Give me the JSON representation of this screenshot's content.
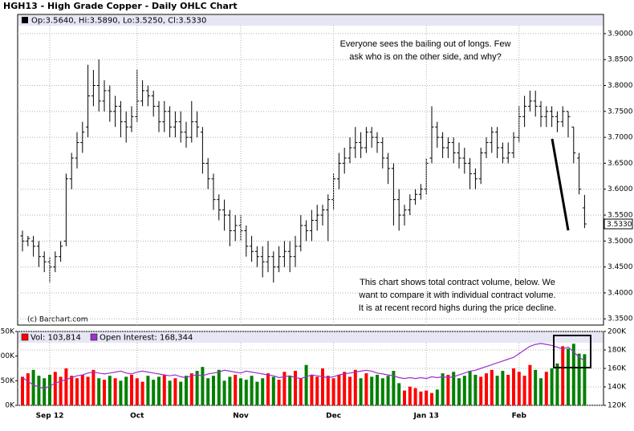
{
  "chart_data": [
    {
      "type": "ohlc",
      "title": "HGH13 - High Grade Copper - Daily OHLC Chart",
      "legend_text": "Op:3.5640, Hi:3.5890, Lo:3.5250, Cl:3.5330",
      "price_tag": "3.5330",
      "credit": "(c) Barchart.com",
      "annotations": [
        [
          "Everyone sees the bailing out of longs.  Few",
          "ask who is on the other side, and why?"
        ],
        [
          "This chart shows total contract volume, below.  We",
          "want to compare it with individual contract volume.",
          "It is at recent record highs during the price decline."
        ]
      ],
      "color": "#000000",
      "grid": true,
      "ylim": [
        3.338,
        3.937
      ],
      "yticks": [
        {
          "value": 3.35,
          "label": "3.3500"
        },
        {
          "value": 3.4,
          "label": "3.4000"
        },
        {
          "value": 3.45,
          "label": "3.4500"
        },
        {
          "value": 3.5,
          "label": "3.5000"
        },
        {
          "value": 3.55,
          "label": "3.5500"
        },
        {
          "value": 3.6,
          "label": "3.6000"
        },
        {
          "value": 3.65,
          "label": "3.6500"
        },
        {
          "value": 3.7,
          "label": "3.7000"
        },
        {
          "value": 3.75,
          "label": "3.7500"
        },
        {
          "value": 3.8,
          "label": "3.8000"
        },
        {
          "value": 3.85,
          "label": "3.8500"
        },
        {
          "value": 3.9,
          "label": "3.9000"
        }
      ],
      "open": [
        3.51,
        3.5,
        3.5,
        3.49,
        3.47,
        3.46,
        3.45,
        3.47,
        3.5,
        3.62,
        3.66,
        3.69,
        3.72,
        3.78,
        3.8,
        3.77,
        3.79,
        3.75,
        3.76,
        3.73,
        3.72,
        3.74,
        3.77,
        3.79,
        3.78,
        3.76,
        3.73,
        3.75,
        3.72,
        3.73,
        3.71,
        3.7,
        3.73,
        3.71,
        3.65,
        3.62,
        3.58,
        3.56,
        3.55,
        3.52,
        3.53,
        3.52,
        3.49,
        3.48,
        3.47,
        3.46,
        3.47,
        3.45,
        3.47,
        3.48,
        3.47,
        3.49,
        3.53,
        3.52,
        3.54,
        3.55,
        3.56,
        3.58,
        3.62,
        3.65,
        3.66,
        3.68,
        3.69,
        3.68,
        3.71,
        3.7,
        3.69,
        3.66,
        3.64,
        3.58,
        3.55,
        3.56,
        3.58,
        3.59,
        3.6,
        3.66,
        3.72,
        3.7,
        3.68,
        3.69,
        3.67,
        3.66,
        3.65,
        3.63,
        3.62,
        3.67,
        3.69,
        3.71,
        3.68,
        3.66,
        3.67,
        3.7,
        3.74,
        3.76,
        3.77,
        3.76,
        3.74,
        3.75,
        3.74,
        3.73,
        3.75,
        3.72,
        3.66,
        3.564
      ],
      "high": [
        3.52,
        3.51,
        3.51,
        3.5,
        3.48,
        3.47,
        3.48,
        3.5,
        3.63,
        3.67,
        3.71,
        3.73,
        3.84,
        3.83,
        3.85,
        3.81,
        3.8,
        3.78,
        3.77,
        3.75,
        3.76,
        3.83,
        3.81,
        3.8,
        3.79,
        3.77,
        3.77,
        3.76,
        3.75,
        3.75,
        3.73,
        3.77,
        3.75,
        3.72,
        3.66,
        3.63,
        3.59,
        3.58,
        3.56,
        3.55,
        3.55,
        3.53,
        3.51,
        3.49,
        3.49,
        3.5,
        3.48,
        3.49,
        3.5,
        3.5,
        3.51,
        3.55,
        3.54,
        3.56,
        3.57,
        3.57,
        3.59,
        3.63,
        3.67,
        3.68,
        3.7,
        3.72,
        3.71,
        3.72,
        3.72,
        3.71,
        3.7,
        3.67,
        3.65,
        3.6,
        3.57,
        3.59,
        3.6,
        3.61,
        3.66,
        3.76,
        3.73,
        3.71,
        3.7,
        3.7,
        3.69,
        3.68,
        3.66,
        3.64,
        3.68,
        3.7,
        3.72,
        3.72,
        3.69,
        3.69,
        3.71,
        3.76,
        3.78,
        3.79,
        3.79,
        3.77,
        3.76,
        3.76,
        3.75,
        3.76,
        3.75,
        3.72,
        3.67,
        3.589
      ],
      "low": [
        3.48,
        3.49,
        3.47,
        3.45,
        3.44,
        3.42,
        3.44,
        3.46,
        3.49,
        3.6,
        3.64,
        3.67,
        3.7,
        3.76,
        3.75,
        3.75,
        3.73,
        3.72,
        3.7,
        3.69,
        3.71,
        3.73,
        3.76,
        3.76,
        3.74,
        3.71,
        3.71,
        3.7,
        3.7,
        3.69,
        3.68,
        3.69,
        3.7,
        3.63,
        3.6,
        3.56,
        3.54,
        3.52,
        3.49,
        3.5,
        3.5,
        3.47,
        3.46,
        3.45,
        3.43,
        3.44,
        3.42,
        3.44,
        3.45,
        3.44,
        3.45,
        3.48,
        3.5,
        3.5,
        3.52,
        3.53,
        3.5,
        3.56,
        3.6,
        3.63,
        3.65,
        3.66,
        3.66,
        3.67,
        3.68,
        3.67,
        3.64,
        3.61,
        3.53,
        3.52,
        3.53,
        3.55,
        3.57,
        3.58,
        3.59,
        3.65,
        3.68,
        3.66,
        3.66,
        3.65,
        3.64,
        3.63,
        3.6,
        3.6,
        3.61,
        3.66,
        3.67,
        3.66,
        3.65,
        3.65,
        3.66,
        3.69,
        3.72,
        3.75,
        3.74,
        3.72,
        3.72,
        3.72,
        3.71,
        3.72,
        3.7,
        3.65,
        3.59,
        3.525
      ],
      "close": [
        3.5,
        3.505,
        3.49,
        3.47,
        3.46,
        3.45,
        3.47,
        3.49,
        3.62,
        3.66,
        3.69,
        3.71,
        3.78,
        3.8,
        3.77,
        3.79,
        3.75,
        3.76,
        3.73,
        3.72,
        3.74,
        3.77,
        3.79,
        3.78,
        3.76,
        3.73,
        3.75,
        3.72,
        3.73,
        3.71,
        3.7,
        3.73,
        3.72,
        3.65,
        3.62,
        3.58,
        3.56,
        3.55,
        3.52,
        3.53,
        3.52,
        3.49,
        3.48,
        3.47,
        3.46,
        3.47,
        3.45,
        3.47,
        3.48,
        3.47,
        3.49,
        3.53,
        3.52,
        3.54,
        3.55,
        3.56,
        3.58,
        3.62,
        3.65,
        3.66,
        3.68,
        3.69,
        3.68,
        3.71,
        3.7,
        3.69,
        3.66,
        3.64,
        3.58,
        3.55,
        3.56,
        3.58,
        3.59,
        3.6,
        3.65,
        3.72,
        3.7,
        3.68,
        3.69,
        3.67,
        3.66,
        3.65,
        3.63,
        3.62,
        3.67,
        3.69,
        3.71,
        3.68,
        3.66,
        3.67,
        3.7,
        3.74,
        3.76,
        3.77,
        3.76,
        3.74,
        3.75,
        3.74,
        3.73,
        3.75,
        3.74,
        3.67,
        3.6,
        3.533
      ]
    },
    {
      "type": "volume",
      "up_color": "#ff0000",
      "down_color": "#008000",
      "grid": true,
      "categories": [
        null,
        null,
        null,
        null,
        null,
        "Sep 12",
        null,
        null,
        null,
        null,
        null,
        null,
        null,
        null,
        null,
        null,
        null,
        null,
        null,
        null,
        null,
        "Oct",
        null,
        null,
        null,
        null,
        null,
        null,
        null,
        null,
        null,
        null,
        null,
        null,
        null,
        null,
        null,
        null,
        null,
        null,
        "Nov",
        null,
        null,
        null,
        null,
        null,
        null,
        null,
        null,
        null,
        null,
        null,
        null,
        null,
        null,
        null,
        null,
        "Dec",
        null,
        null,
        null,
        null,
        null,
        null,
        null,
        null,
        null,
        null,
        null,
        null,
        null,
        null,
        null,
        null,
        "Jan 13",
        null,
        null,
        null,
        null,
        null,
        null,
        null,
        null,
        null,
        null,
        null,
        null,
        null,
        null,
        null,
        null,
        "Feb",
        null,
        null,
        null,
        null,
        null,
        null,
        null,
        null,
        null,
        null,
        null,
        null
      ],
      "ylim": [
        0,
        150000
      ],
      "yticks": [
        {
          "value": 0,
          "label": "0K"
        },
        {
          "value": 50000,
          "label": "50K"
        },
        {
          "value": 100000,
          "label": "100K"
        },
        {
          "value": 150000,
          "label": "150K"
        }
      ],
      "y2lim": [
        120000,
        200000
      ],
      "y2ticks": [
        {
          "value": 120000,
          "label": "120K"
        },
        {
          "value": 140000,
          "label": "140K"
        },
        {
          "value": 160000,
          "label": "160K"
        },
        {
          "value": 180000,
          "label": "180K"
        },
        {
          "value": 200000,
          "label": "200K"
        }
      ],
      "series": [
        {
          "name": "Vol: 103,814",
          "color": "#ff0000",
          "values": [
            58000,
            65000,
            72000,
            60000,
            55000,
            62000,
            68000,
            58000,
            75000,
            60000,
            55000,
            62000,
            58000,
            72000,
            55000,
            52000,
            60000,
            55000,
            50000,
            58000,
            62000,
            55000,
            48000,
            60000,
            52000,
            58000,
            62000,
            50000,
            55000,
            48000,
            60000,
            65000,
            70000,
            78000,
            55000,
            60000,
            72000,
            50000,
            58000,
            62000,
            55000,
            52000,
            60000,
            48000,
            55000,
            65000,
            58000,
            52000,
            68000,
            60000,
            70000,
            55000,
            82000,
            62000,
            58000,
            75000,
            60000,
            55000,
            62000,
            68000,
            58000,
            72000,
            55000,
            65000,
            58000,
            62000,
            55000,
            60000,
            70000,
            45000,
            30000,
            38000,
            35000,
            28000,
            30000,
            25000,
            32000,
            65000,
            62000,
            68000,
            55000,
            60000,
            70000,
            62000,
            58000,
            65000,
            72000,
            60000,
            70000,
            62000,
            75000,
            68000,
            60000,
            82000,
            72000,
            55000,
            68000,
            75000,
            85000,
            120000,
            115000,
            125000,
            105000,
            103814
          ]
        },
        {
          "name": "Open Interest: 168,344",
          "color": "#9933cc",
          "axis": "y2",
          "values": [
            150000,
            146000,
            142000,
            140000,
            138000,
            141000,
            144000,
            146000,
            148000,
            150000,
            152000,
            153000,
            155000,
            156000,
            155000,
            154000,
            155000,
            156000,
            157000,
            155000,
            154000,
            156000,
            157000,
            156000,
            155000,
            154000,
            153000,
            152000,
            153000,
            151000,
            150000,
            152000,
            153000,
            152000,
            154000,
            155000,
            156000,
            158000,
            157000,
            156000,
            155000,
            157000,
            156000,
            155000,
            154000,
            153000,
            152000,
            150000,
            151000,
            152000,
            150000,
            149000,
            151000,
            153000,
            152000,
            151000,
            150000,
            151000,
            153000,
            154000,
            155000,
            156000,
            157000,
            158000,
            157000,
            155000,
            154000,
            153000,
            152000,
            150000,
            149000,
            150000,
            149000,
            150000,
            149000,
            151000,
            150000,
            151000,
            150000,
            151000,
            153000,
            155000,
            157000,
            158000,
            160000,
            162000,
            164000,
            166000,
            168000,
            170000,
            172000,
            176000,
            180000,
            184000,
            186000,
            187000,
            186000,
            185000,
            183000,
            181000,
            183000,
            178000,
            172000,
            168344
          ]
        }
      ]
    }
  ]
}
